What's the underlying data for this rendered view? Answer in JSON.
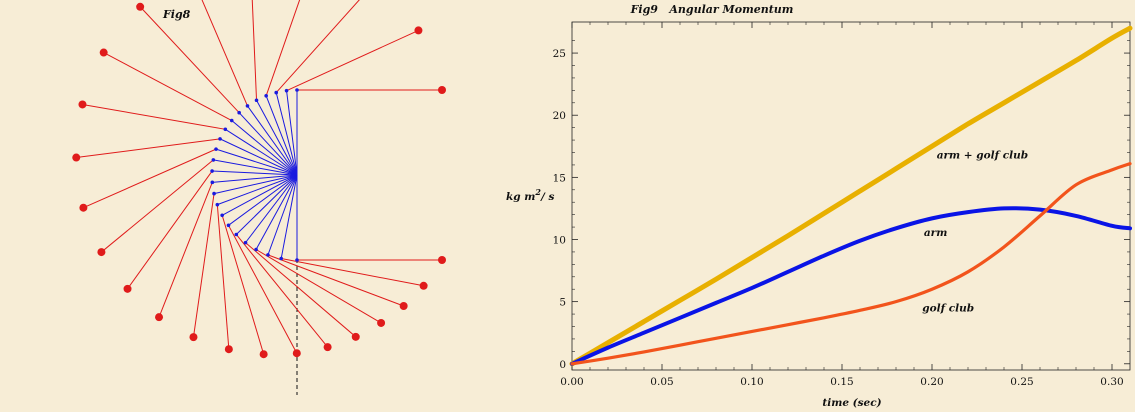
{
  "colors": {
    "background": "#f7edd6",
    "arm_segment": "#1a1adf",
    "club_segment": "#e01b1b",
    "series_total": "#e8b000",
    "series_arm": "#0a14e6",
    "series_club": "#f2541c"
  },
  "chart_data": [
    {
      "type": "diagram",
      "title": "Fig8",
      "description_points": "stroboscopic frames of arm (blue) and golf club (red) during the swing",
      "frames": 24
    },
    {
      "type": "line",
      "title": "Fig9   Angular Momentum",
      "xlabel": "time (sec)",
      "ylabel": "kg m²/ s",
      "xlim": [
        0,
        0.31
      ],
      "ylim": [
        -0.5,
        27.5
      ],
      "xticks": [
        "0.00",
        "0.05",
        "0.10",
        "0.15",
        "0.20",
        "0.25",
        "0.30"
      ],
      "yticks": [
        "0",
        "5",
        "10",
        "15",
        "20",
        "25"
      ],
      "grid": false,
      "legend": "inline labels",
      "x": [
        0,
        0.02,
        0.04,
        0.06,
        0.08,
        0.1,
        0.12,
        0.14,
        0.16,
        0.18,
        0.2,
        0.22,
        0.24,
        0.26,
        0.28,
        0.3,
        0.31
      ],
      "series": [
        {
          "name": "arm + golf club",
          "color": "#e8b000",
          "values": [
            0,
            1.7,
            3.4,
            5.1,
            6.8,
            8.55,
            10.3,
            12.1,
            13.9,
            15.7,
            17.5,
            19.3,
            21.0,
            22.7,
            24.4,
            26.2,
            27.0
          ]
        },
        {
          "name": "arm",
          "color": "#0a14e6",
          "values": [
            0,
            1.3,
            2.5,
            3.7,
            4.9,
            6.1,
            7.4,
            8.7,
            9.9,
            10.9,
            11.7,
            12.2,
            12.5,
            12.4,
            11.9,
            11.1,
            10.9
          ]
        },
        {
          "name": "golf club",
          "color": "#f2541c",
          "values": [
            0,
            0.45,
            0.95,
            1.5,
            2.05,
            2.6,
            3.15,
            3.7,
            4.3,
            5.0,
            6.0,
            7.4,
            9.4,
            11.9,
            14.4,
            15.6,
            16.1
          ]
        }
      ],
      "annotations": [
        {
          "text": "arm + golf club",
          "x": 0.228,
          "y": 16.5
        },
        {
          "text": "arm",
          "x": 0.202,
          "y": 10.3
        },
        {
          "text": "golf club",
          "x": 0.209,
          "y": 4.2
        }
      ]
    }
  ]
}
